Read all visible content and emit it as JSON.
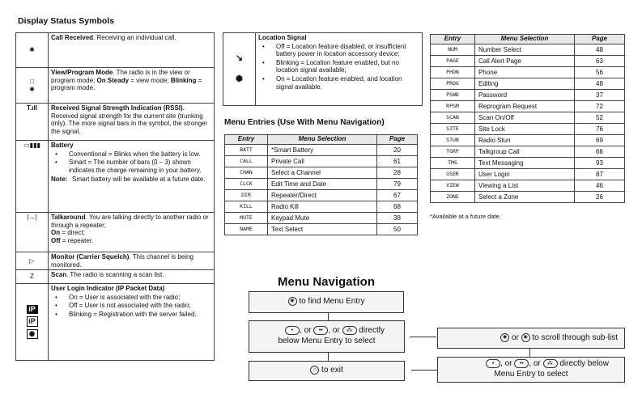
{
  "title": "Display Status Symbols",
  "symbols": [
    {
      "icon": "call-received-icon",
      "title": "Call Received",
      "text": ". Receiving an individual call."
    },
    {
      "icon": "view-program-mode-icon",
      "title": "View/Program Mode",
      "text": ". The radio is in the view or program mode; ",
      "b1": "On Steady",
      "t1": " = view mode; ",
      "b2": "Blinking",
      "t2": " = program mode."
    },
    {
      "icon": "rssi-icon",
      "title": "Received Signal Strength Indication (RSSI).",
      "text": " Received signal strength for the current site (trunking only). The more signal bars in the symbol, the stronger the signal."
    },
    {
      "icon": "battery-icon",
      "title": "Battery",
      "bullets": [
        "Conventional = Blinks when the battery is low.",
        "Smart = The number of bars (0 – 3) shown indicates the charge remaining in your battery."
      ],
      "note_label": "Note:",
      "note": "Smart battery will be available at a future date."
    },
    {
      "icon": "talkaround-icon",
      "title": "Talkaround",
      "text": ". You are talking directly to another radio or through a repeater;",
      "b1": "On",
      "t1": " = direct;",
      "b2": "Off",
      "t2": " = repeater."
    },
    {
      "icon": "monitor-icon",
      "title": "Monitor (Carrier Squelch)",
      "text": ". This channel is being monitored."
    },
    {
      "icon": "scan-icon",
      "title": "Scan",
      "text": ". The radio is scanning a scan list."
    },
    {
      "icon": "ip-login-icon",
      "title": "User Login Indicator (IP Packet Data)",
      "bullets": [
        "On = User is associated with the radio;",
        "Off = User is not associated with the radio;",
        "Blinking = Registration with the server failed."
      ]
    }
  ],
  "location": {
    "title": "Location Signal",
    "bullets": [
      "Off = Location feature disabled, or insufficient battery power in location accessory device;",
      "Blinking = Location feature enabled, but no location signal available;",
      "On = Location feature enabled, and location signal available."
    ]
  },
  "menu_entries_title": "Menu Entries (Use With Menu Navigation)",
  "headers": {
    "entry": "Entry",
    "selection": "Menu Selection",
    "page": "Page"
  },
  "table1": [
    [
      "BATT",
      "*Smart Battery",
      "20"
    ],
    [
      "CALL",
      "Private Call",
      "61"
    ],
    [
      "CHAN",
      "Select a Channel",
      "28"
    ],
    [
      "CLCK",
      "Edit Time and Date",
      "79"
    ],
    [
      "DIR",
      "Repeater/Direct",
      "67"
    ],
    [
      "KILL",
      "Radio Kill",
      "68"
    ],
    [
      "MUTE",
      "Keypad Mute",
      "38"
    ],
    [
      "NAME",
      "Text Select",
      "50"
    ]
  ],
  "table2": [
    [
      "NUM",
      "Number Select",
      "48"
    ],
    [
      "PAGE",
      "Call Alert Page",
      "63"
    ],
    [
      "PHON",
      "Phone",
      "56"
    ],
    [
      "PROG",
      "Editing",
      "48"
    ],
    [
      "PSWD",
      "Password",
      "37"
    ],
    [
      "RPGM",
      "Reprogram Request",
      "72"
    ],
    [
      "SCAN",
      "Scan On/Off",
      "52"
    ],
    [
      "SITE",
      "Site Lock",
      "76"
    ],
    [
      "STUN",
      "Radio Stun",
      "69"
    ],
    [
      "TGRP",
      "Talkgroup Call",
      "66"
    ],
    [
      "TMS",
      "Text Messaging",
      "93"
    ],
    [
      "USER",
      "User Login",
      "87"
    ],
    [
      "VIEW",
      "Viewing a List",
      "46"
    ],
    [
      "ZONE",
      "Select a Zone",
      "26"
    ]
  ],
  "footnote": "*Available at a future date.",
  "nav": {
    "title": "Menu Navigation",
    "find": "to find Menu Entry",
    "or": ", or ",
    "or2": " or ",
    "directly": "directly",
    "below_select": "below Menu Entry to select",
    "scroll": "to scroll through sub-list",
    "directly_below": "directly below",
    "menu_entry_select": "Menu Entry to select",
    "exit": "to exit"
  }
}
